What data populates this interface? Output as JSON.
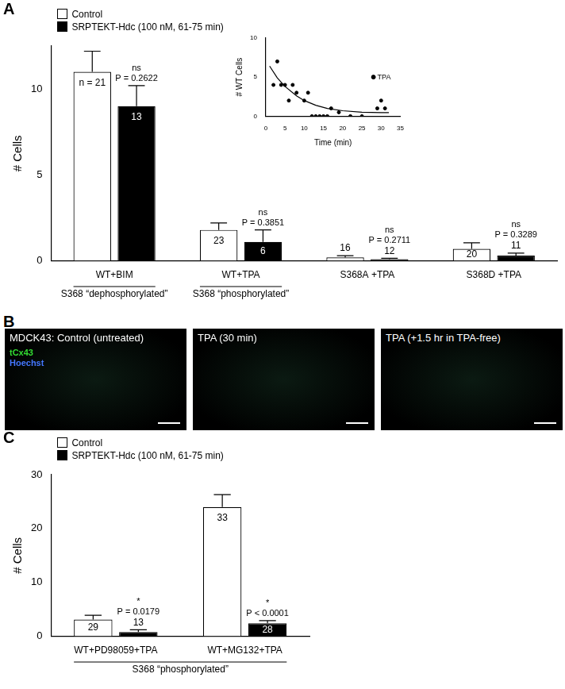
{
  "chart_data": [
    {
      "type": "bar",
      "panel_label": "A",
      "y_label": "# Cells",
      "categories": [
        "WT+BIM",
        "WT+TPA",
        "S368A +TPA",
        "S368D +TPA"
      ],
      "series": [
        {
          "name": "Control",
          "color": "#ffffff",
          "values": [
            11,
            1.8,
            0.2,
            0.7
          ],
          "errors": [
            1.2,
            0.4,
            0.1,
            0.35
          ],
          "n_labels": [
            "n = 21",
            "23",
            "16",
            "20"
          ]
        },
        {
          "name": "SRPTEKT-Hdc (100 nM, 61-75 min)",
          "color": "#000000",
          "values": [
            9,
            1.1,
            0.1,
            0.3
          ],
          "errors": [
            1.2,
            0.7,
            0.05,
            0.15
          ],
          "n_labels": [
            "13",
            "6",
            "12",
            "11"
          ],
          "p_labels": [
            [
              "ns",
              "P = 0.2622"
            ],
            [
              "ns",
              "P = 0.3851"
            ],
            [
              "ns",
              "P = 0.2711"
            ],
            [
              "ns",
              "P = 0.3289"
            ]
          ]
        }
      ],
      "groups": [
        {
          "label": "S368 “dephosphorylated”",
          "categories": [
            "WT+BIM"
          ]
        },
        {
          "label": "S368 “phosphorylated”",
          "categories": [
            "WT+TPA"
          ]
        }
      ],
      "ylim": [
        0,
        12.5
      ],
      "yticks": [
        0,
        5,
        10
      ],
      "legend": "top-left"
    },
    {
      "type": "scatter",
      "x_label": "Time (min)",
      "y_label": "# WT Cells",
      "x": [
        2,
        3,
        4,
        5,
        6,
        7,
        8,
        10,
        11,
        12,
        13,
        14,
        15,
        16,
        17,
        19,
        22,
        25,
        29,
        30,
        31
      ],
      "values": [
        4,
        7,
        4,
        4,
        2,
        4,
        3,
        2,
        3,
        0,
        0,
        0,
        0,
        0,
        1,
        0.5,
        0,
        0,
        1,
        2,
        1
      ],
      "fit": {
        "x": [
          1,
          3,
          5,
          8,
          10,
          13,
          16,
          20,
          25,
          30,
          32
        ],
        "values": [
          6.4,
          4.9,
          3.8,
          2.6,
          2.0,
          1.4,
          1.0,
          0.7,
          0.5,
          0.45,
          0.45
        ]
      },
      "annotations": [
        {
          "text": "TPA",
          "x": 28,
          "y": 5
        }
      ],
      "xlim": [
        0,
        35
      ],
      "xticks": [
        0,
        5,
        10,
        15,
        20,
        25,
        30,
        35
      ],
      "ylim": [
        0,
        10
      ],
      "yticks": [
        0,
        5,
        10
      ]
    },
    {
      "type": "bar",
      "panel_label": "C",
      "y_label": "# Cells",
      "categories": [
        "WT+PD98059+TPA",
        "WT+MG132+TPA"
      ],
      "series": [
        {
          "name": "Control",
          "color": "#ffffff",
          "values": [
            3.1,
            24
          ],
          "errors": [
            0.8,
            2.3
          ],
          "n_labels": [
            "29",
            "33"
          ]
        },
        {
          "name": "SRPTEKT-Hdc (100 nM, 61-75 min)",
          "color": "#000000",
          "values": [
            0.8,
            2.4
          ],
          "errors": [
            0.4,
            0.5
          ],
          "n_labels": [
            "13",
            "28"
          ],
          "p_labels": [
            [
              "*",
              "P = 0.0179"
            ],
            [
              "*",
              "P < 0.0001"
            ]
          ]
        }
      ],
      "groups": [
        {
          "label": "S368 “phosphorylated”",
          "categories": [
            "WT+PD98059+TPA",
            "WT+MG132+TPA"
          ]
        }
      ],
      "ylim": [
        0,
        30
      ],
      "yticks": [
        0,
        10,
        20,
        30
      ],
      "legend": "top-left"
    }
  ],
  "panel_b": {
    "panel_label": "B",
    "images": [
      {
        "title": "MDCK43: Control (untreated)"
      },
      {
        "title": "TPA (30 min)"
      },
      {
        "title": "TPA (+1.5 hr in TPA-free)"
      }
    ],
    "channels": [
      {
        "label": "tCx43",
        "color": "#33dd33"
      },
      {
        "label": "Hoechst",
        "color": "#4477ff"
      }
    ]
  }
}
